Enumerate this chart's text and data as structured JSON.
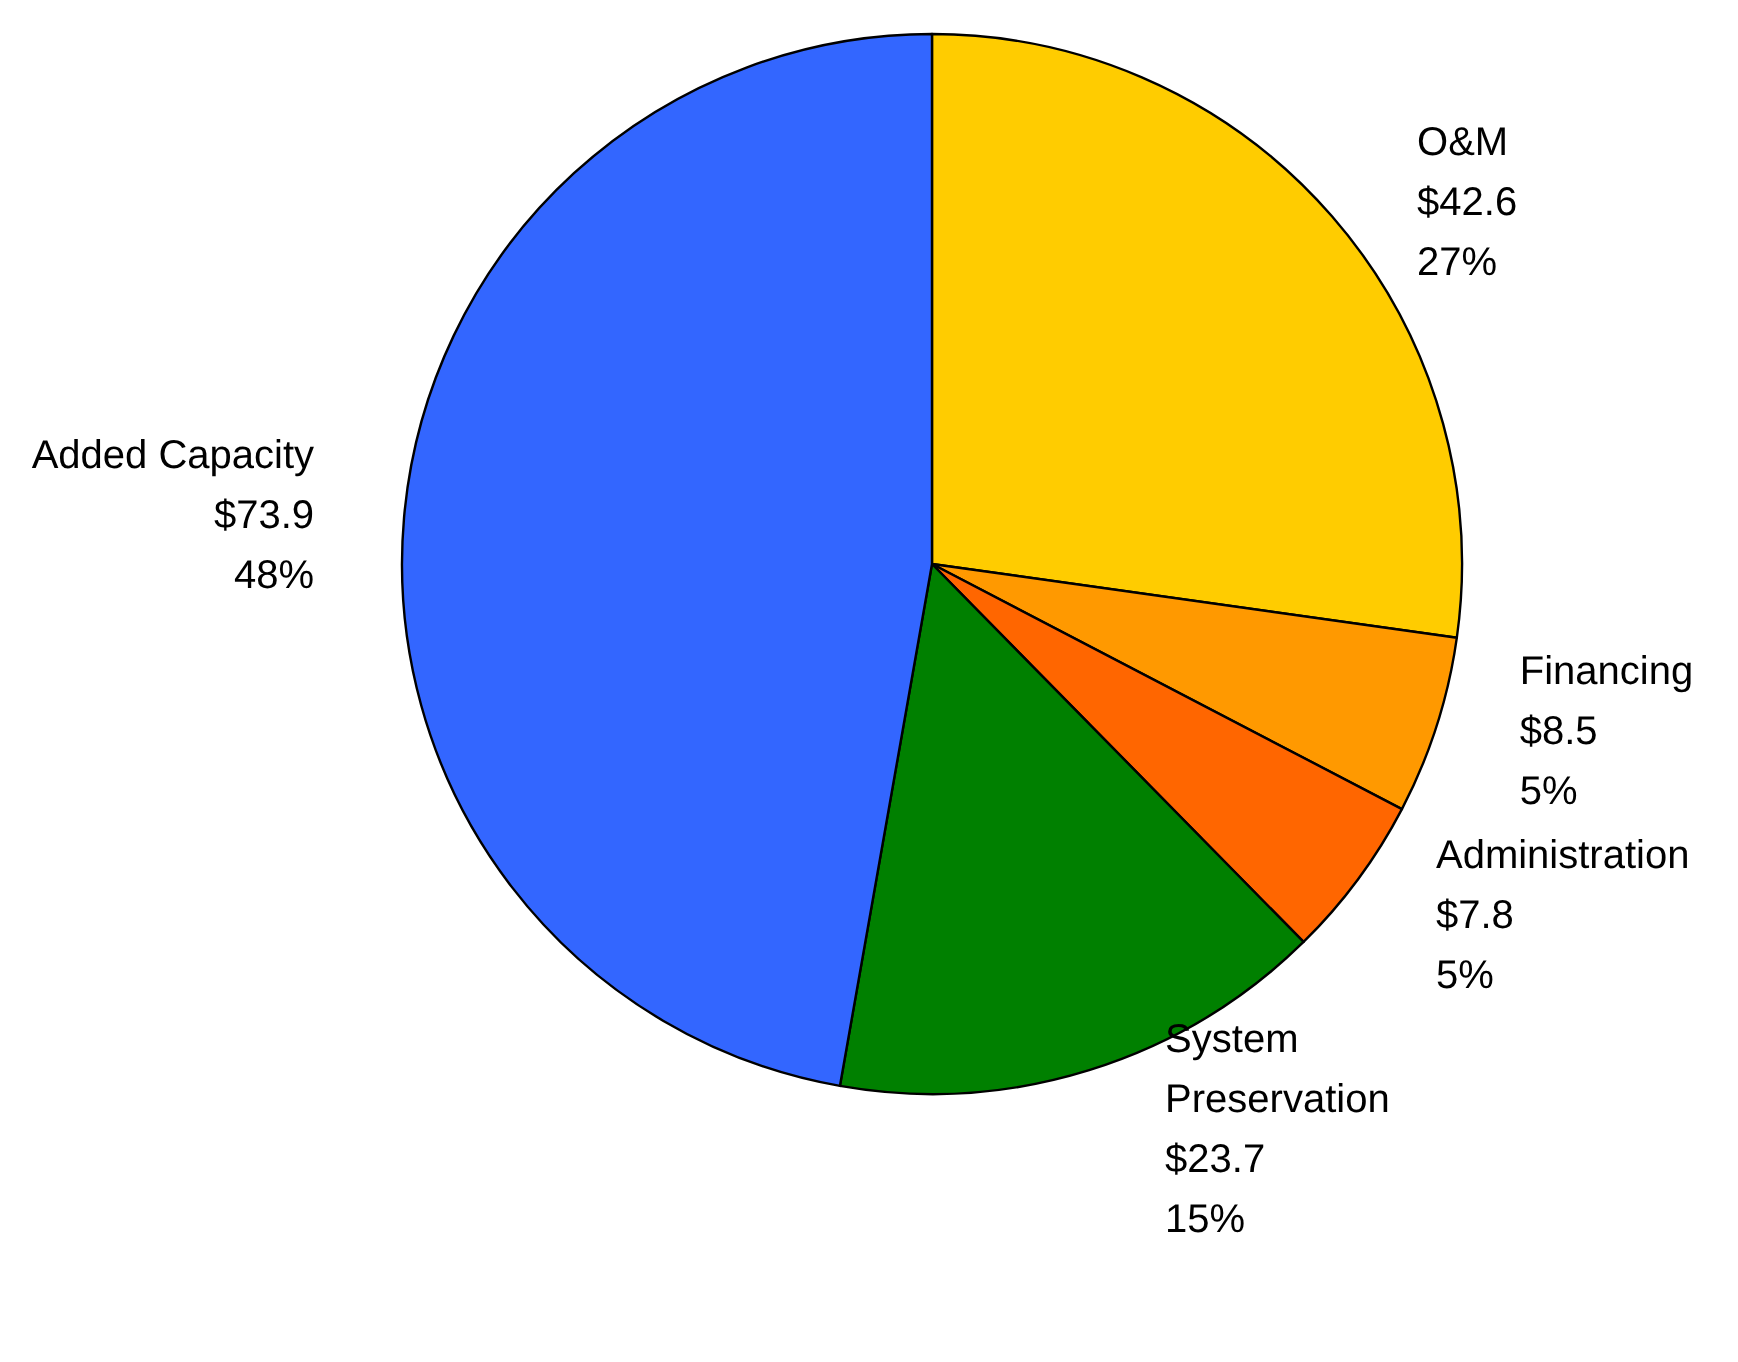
{
  "chart_data": {
    "type": "pie",
    "categories": [
      "O&M",
      "Financing",
      "Administration",
      "System Preservation",
      "Added Capacity"
    ],
    "values": [
      42.6,
      8.5,
      7.8,
      23.7,
      73.9
    ],
    "value_labels": [
      "$42.6\n27%",
      "$8.5\n5%",
      "$7.8\n5%",
      "$23.7\n15%",
      "$73.9\n48%"
    ],
    "colors": [
      "#ffcc00",
      "#ff9900",
      "#ff6600",
      "#008000",
      "#3366ff"
    ],
    "legend": false
  }
}
